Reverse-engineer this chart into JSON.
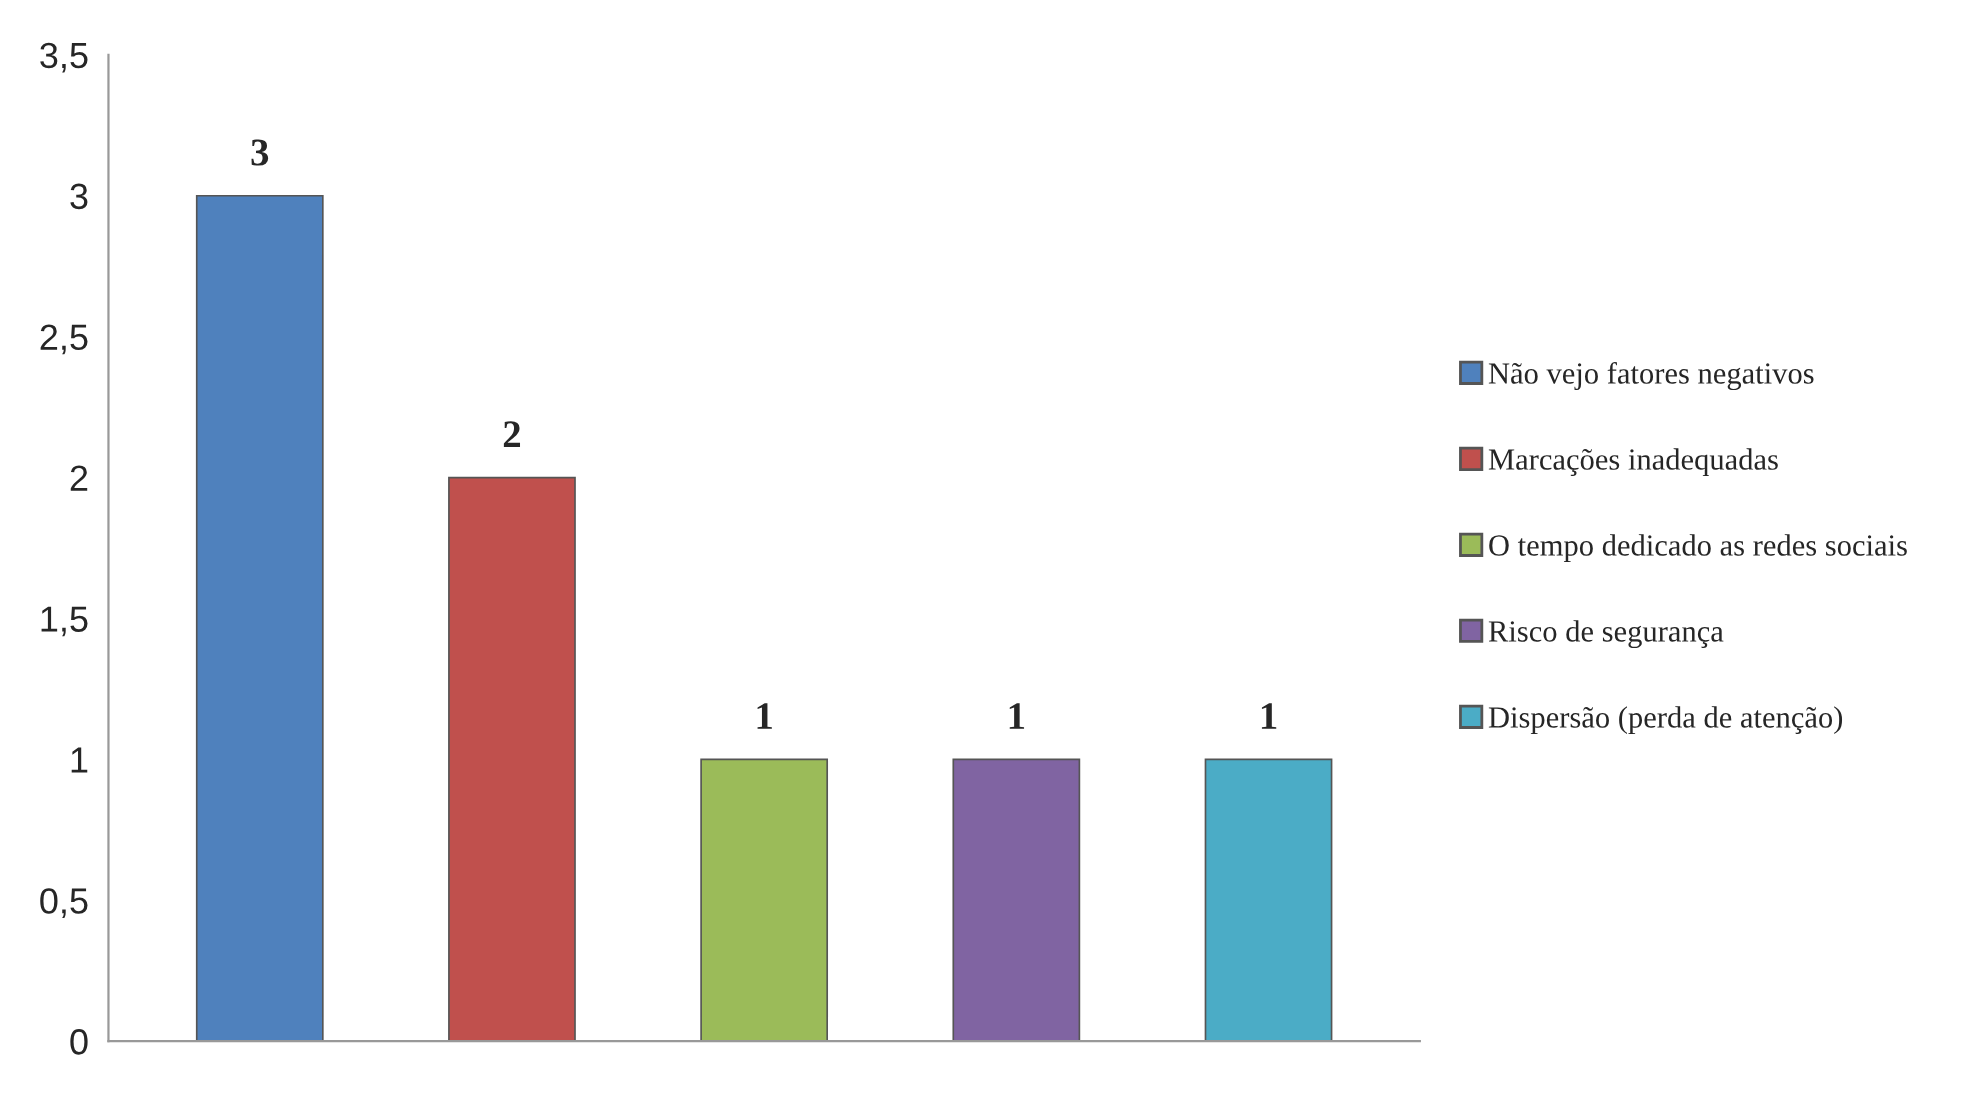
{
  "chart_data": {
    "type": "bar",
    "categories": [
      null,
      null,
      null,
      null,
      null
    ],
    "series": [
      {
        "name": "Não vejo fatores negativos",
        "color": "#4f81bd",
        "values": [
          3,
          null,
          null,
          null,
          null
        ]
      },
      {
        "name": "Marcações inadequadas",
        "color": "#c0504d",
        "values": [
          null,
          2,
          null,
          null,
          null
        ]
      },
      {
        "name": "O tempo dedicado as redes sociais",
        "color": "#9bbb59",
        "values": [
          null,
          null,
          1,
          null,
          null
        ]
      },
      {
        "name": "Risco de segurança",
        "color": "#8064a2",
        "values": [
          null,
          null,
          null,
          1,
          null
        ]
      },
      {
        "name": "Dispersão (perda de atenção)",
        "color": "#4bacc6",
        "values": [
          null,
          null,
          null,
          null,
          1
        ]
      }
    ],
    "ylim": [
      0,
      3.5
    ],
    "yticks": [
      0,
      {
        "value": 0.5,
        "label": "0,5"
      },
      1,
      {
        "value": 1.5,
        "label": "1,5"
      },
      2,
      {
        "value": 2.5,
        "label": "2,5"
      },
      3,
      {
        "value": 3.5,
        "label": "3,5"
      }
    ],
    "data_labels": true,
    "grid": false,
    "legend": "right"
  }
}
